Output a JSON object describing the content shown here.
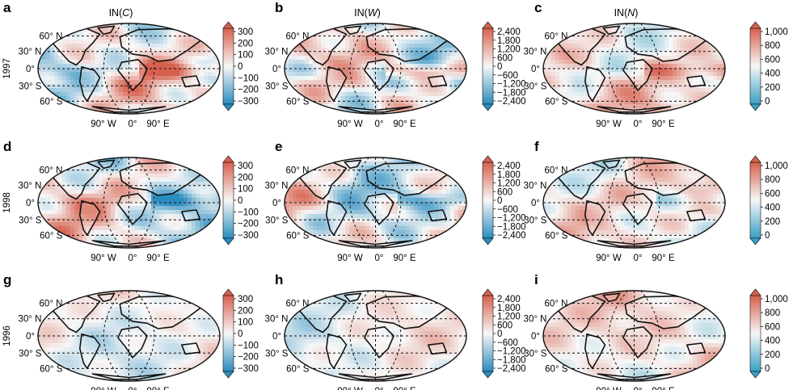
{
  "chart_data": {
    "type": "heatmap",
    "columns": [
      {
        "title_prefix": "IN(",
        "title_var": "C",
        "title_suffix": ")",
        "colorbar_ticks": [
          "300",
          "200",
          "100",
          "0",
          "−100",
          "−200",
          "−300"
        ],
        "range": [
          -300,
          300
        ],
        "diverging": true
      },
      {
        "title_prefix": "IN(",
        "title_var": "W",
        "title_suffix": ")",
        "colorbar_ticks": [
          "2,400",
          "1,800",
          "1,200",
          "600",
          "0",
          "−600",
          "−1,200",
          "−1,800",
          "−2,400"
        ],
        "range": [
          -2400,
          2400
        ],
        "diverging": true
      },
      {
        "title_prefix": "IN(",
        "title_var": "N",
        "title_suffix": ")",
        "colorbar_ticks": [
          "1,000",
          "800",
          "600",
          "400",
          "200",
          "0"
        ],
        "range": [
          0,
          1000
        ],
        "diverging": false
      }
    ],
    "rows": [
      {
        "year": "1997",
        "intensity": 0.95
      },
      {
        "year": "1998",
        "intensity": 0.95
      },
      {
        "year": "1996",
        "intensity": 0.45
      }
    ],
    "panels": [
      {
        "label": "a",
        "row": 0,
        "col": 0
      },
      {
        "label": "b",
        "row": 0,
        "col": 1
      },
      {
        "label": "c",
        "row": 0,
        "col": 2
      },
      {
        "label": "d",
        "row": 1,
        "col": 0
      },
      {
        "label": "e",
        "row": 1,
        "col": 1
      },
      {
        "label": "f",
        "row": 1,
        "col": 2
      },
      {
        "label": "g",
        "row": 2,
        "col": 0
      },
      {
        "label": "h",
        "row": 2,
        "col": 1
      },
      {
        "label": "i",
        "row": 2,
        "col": 2
      }
    ],
    "lat_labels": [
      "60° N",
      "30° N",
      "0°",
      "30° S",
      "60° S"
    ],
    "lon_labels": [
      "90° W",
      "0°",
      "90° E"
    ],
    "colors": {
      "low": "#2b8cbe",
      "mid": "#f7f7f7",
      "high": "#d6604d",
      "nlow": "#3a9fc4"
    }
  }
}
